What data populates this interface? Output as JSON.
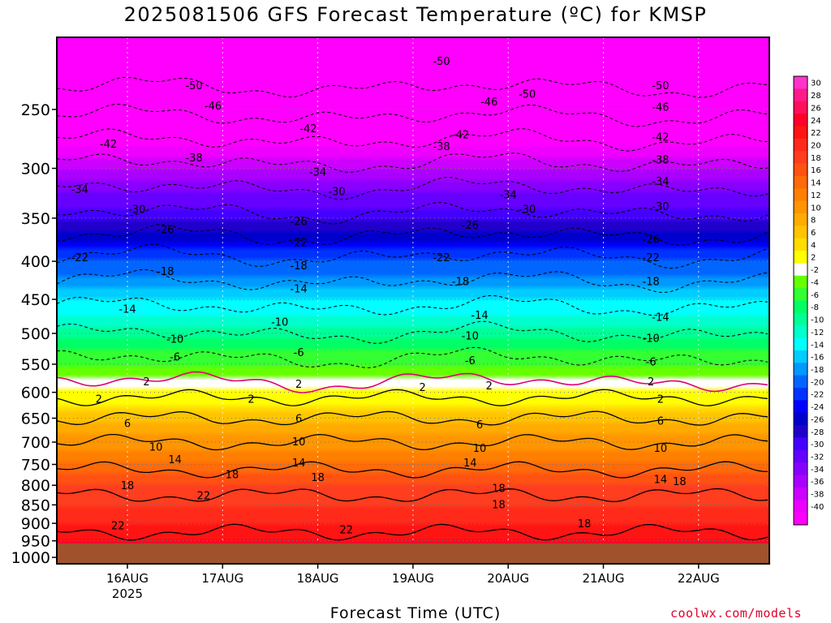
{
  "chart_data": {
    "type": "heatmap",
    "title": "2025081506 GFS Forecast Temperature (ºC) for KMSP",
    "xlabel": "Forecast Time (UTC)",
    "x_ticks": [
      {
        "label": "16AUG",
        "sublabel": "2025"
      },
      {
        "label": "17AUG",
        "sublabel": ""
      },
      {
        "label": "18AUG",
        "sublabel": ""
      },
      {
        "label": "19AUG",
        "sublabel": ""
      },
      {
        "label": "20AUG",
        "sublabel": ""
      },
      {
        "label": "21AUG",
        "sublabel": ""
      },
      {
        "label": "22AUG",
        "sublabel": ""
      }
    ],
    "y_ticks": [
      250,
      300,
      350,
      400,
      450,
      500,
      550,
      600,
      650,
      700,
      750,
      800,
      850,
      900,
      950,
      1000
    ],
    "y_top": 200,
    "y_bottom": 1020,
    "y_scale": "log-pressure",
    "levels": [
      {
        "p": 200,
        "t": -56
      },
      {
        "p": 250,
        "t": -47
      },
      {
        "p": 300,
        "t": -37
      },
      {
        "p": 350,
        "t": -29
      },
      {
        "p": 400,
        "t": -21
      },
      {
        "p": 450,
        "t": -15
      },
      {
        "p": 500,
        "t": -10
      },
      {
        "p": 550,
        "t": -5
      },
      {
        "p": 580,
        "t": -2
      },
      {
        "p": 600,
        "t": 1
      },
      {
        "p": 650,
        "t": 6
      },
      {
        "p": 700,
        "t": 10
      },
      {
        "p": 750,
        "t": 13
      },
      {
        "p": 800,
        "t": 17
      },
      {
        "p": 850,
        "t": 19
      },
      {
        "p": 900,
        "t": 21
      },
      {
        "p": 950,
        "t": 23
      },
      {
        "p": 1000,
        "t": 25
      }
    ],
    "contour_labels": [
      {
        "value": "-50",
        "day": 3.3,
        "p": 215
      },
      {
        "value": "-50",
        "day": 0.7,
        "p": 232
      },
      {
        "value": "-50",
        "day": 4.2,
        "p": 238
      },
      {
        "value": "-50",
        "day": 5.6,
        "p": 232
      },
      {
        "value": "-46",
        "day": 0.9,
        "p": 247
      },
      {
        "value": "-46",
        "day": 3.8,
        "p": 244
      },
      {
        "value": "-46",
        "day": 5.6,
        "p": 248
      },
      {
        "value": "-42",
        "day": -0.2,
        "p": 278
      },
      {
        "value": "-42",
        "day": 1.9,
        "p": 265
      },
      {
        "value": "-42",
        "day": 3.5,
        "p": 270
      },
      {
        "value": "-42",
        "day": 5.6,
        "p": 272
      },
      {
        "value": "-38",
        "day": 0.7,
        "p": 290
      },
      {
        "value": "-38",
        "day": 3.3,
        "p": 280
      },
      {
        "value": "-38",
        "day": 5.6,
        "p": 292
      },
      {
        "value": "-34",
        "day": -0.5,
        "p": 320
      },
      {
        "value": "-34",
        "day": 2.0,
        "p": 303
      },
      {
        "value": "-34",
        "day": 4.0,
        "p": 325
      },
      {
        "value": "-34",
        "day": 5.6,
        "p": 312
      },
      {
        "value": "-30",
        "day": 0.1,
        "p": 340
      },
      {
        "value": "-30",
        "day": 2.2,
        "p": 322
      },
      {
        "value": "-30",
        "day": 4.2,
        "p": 340
      },
      {
        "value": "-30",
        "day": 5.6,
        "p": 337
      },
      {
        "value": "-26",
        "day": 0.4,
        "p": 362
      },
      {
        "value": "-26",
        "day": 1.8,
        "p": 353
      },
      {
        "value": "-26",
        "day": 3.6,
        "p": 357
      },
      {
        "value": "-26",
        "day": 5.5,
        "p": 373
      },
      {
        "value": "-22",
        "day": -0.5,
        "p": 395
      },
      {
        "value": "-22",
        "day": 1.8,
        "p": 377
      },
      {
        "value": "-22",
        "day": 3.3,
        "p": 395
      },
      {
        "value": "-22",
        "day": 5.5,
        "p": 395
      },
      {
        "value": "-18",
        "day": 0.4,
        "p": 412
      },
      {
        "value": "-18",
        "day": 1.8,
        "p": 405
      },
      {
        "value": "-18",
        "day": 3.5,
        "p": 425
      },
      {
        "value": "-18",
        "day": 5.5,
        "p": 425
      },
      {
        "value": "-14",
        "day": 0.0,
        "p": 463
      },
      {
        "value": "-14",
        "day": 1.8,
        "p": 435
      },
      {
        "value": "-14",
        "day": 3.7,
        "p": 472
      },
      {
        "value": "-14",
        "day": 5.6,
        "p": 475
      },
      {
        "value": "-10",
        "day": 0.5,
        "p": 508
      },
      {
        "value": "-10",
        "day": 1.6,
        "p": 482
      },
      {
        "value": "-10",
        "day": 3.6,
        "p": 503
      },
      {
        "value": "-10",
        "day": 5.5,
        "p": 507
      },
      {
        "value": "-6",
        "day": 0.5,
        "p": 537
      },
      {
        "value": "-6",
        "day": 1.8,
        "p": 530
      },
      {
        "value": "-6",
        "day": 3.6,
        "p": 543
      },
      {
        "value": "-6",
        "day": 5.5,
        "p": 545
      },
      {
        "value": "2",
        "day": 0.2,
        "p": 580
      },
      {
        "value": "2",
        "day": 1.8,
        "p": 584
      },
      {
        "value": "2",
        "day": 3.1,
        "p": 590
      },
      {
        "value": "2",
        "day": 3.8,
        "p": 587
      },
      {
        "value": "2",
        "day": 5.5,
        "p": 580
      },
      {
        "value": "2",
        "day": -0.3,
        "p": 612
      },
      {
        "value": "2",
        "day": 1.3,
        "p": 612
      },
      {
        "value": "2",
        "day": 5.6,
        "p": 612
      },
      {
        "value": "6",
        "day": 0.0,
        "p": 660
      },
      {
        "value": "6",
        "day": 1.8,
        "p": 650
      },
      {
        "value": "6",
        "day": 3.7,
        "p": 662
      },
      {
        "value": "6",
        "day": 5.6,
        "p": 655
      },
      {
        "value": "10",
        "day": 0.3,
        "p": 710
      },
      {
        "value": "10",
        "day": 1.8,
        "p": 698
      },
      {
        "value": "10",
        "day": 3.7,
        "p": 712
      },
      {
        "value": "10",
        "day": 5.6,
        "p": 712
      },
      {
        "value": "14",
        "day": 0.5,
        "p": 738
      },
      {
        "value": "14",
        "day": 1.8,
        "p": 745
      },
      {
        "value": "14",
        "day": 3.6,
        "p": 745
      },
      {
        "value": "14",
        "day": 5.6,
        "p": 785
      },
      {
        "value": "18",
        "day": 0.0,
        "p": 800
      },
      {
        "value": "18",
        "day": 1.1,
        "p": 773
      },
      {
        "value": "18",
        "day": 2.0,
        "p": 780
      },
      {
        "value": "18",
        "day": 3.9,
        "p": 807
      },
      {
        "value": "18",
        "day": 3.9,
        "p": 848
      },
      {
        "value": "18",
        "day": 4.8,
        "p": 900
      },
      {
        "value": "18",
        "day": 5.8,
        "p": 790
      },
      {
        "value": "22",
        "day": -0.1,
        "p": 905
      },
      {
        "value": "22",
        "day": 0.8,
        "p": 825
      },
      {
        "value": "22",
        "day": 2.3,
        "p": 917
      }
    ],
    "colorbar": {
      "labels": [
        "30",
        "28",
        "26",
        "24",
        "22",
        "20",
        "18",
        "16",
        "14",
        "12",
        "10",
        "8",
        "6",
        "4",
        "2",
        "-2",
        "-4",
        "-6",
        "-8",
        "-10",
        "-12",
        "-14",
        "-16",
        "-18",
        "-20",
        "-22",
        "-24",
        "-26",
        "-28",
        "-30",
        "-32",
        "-34",
        "-36",
        "-38",
        "-40"
      ],
      "colors": [
        "#ff33cc",
        "#ff1a8c",
        "#ff0f5a",
        "#ff002a",
        "#ff1414",
        "#ff2a1a",
        "#ff3d1f",
        "#ff5212",
        "#ff6a0a",
        "#ff7f00",
        "#ff9500",
        "#ffab00",
        "#ffc400",
        "#ffdd00",
        "#ffff00",
        "#ffffff",
        "#66ff00",
        "#33ff33",
        "#00ff66",
        "#00ff99",
        "#00ffcc",
        "#00ffff",
        "#00ccff",
        "#0099ff",
        "#0066ff",
        "#0033ff",
        "#0000ff",
        "#0000cc",
        "#2200cc",
        "#4400ff",
        "#6600ff",
        "#8800ff",
        "#aa00ff",
        "#cc00ff",
        "#ee00ff",
        "#ff00ff"
      ]
    }
  },
  "credit": "coolwx.com/models"
}
